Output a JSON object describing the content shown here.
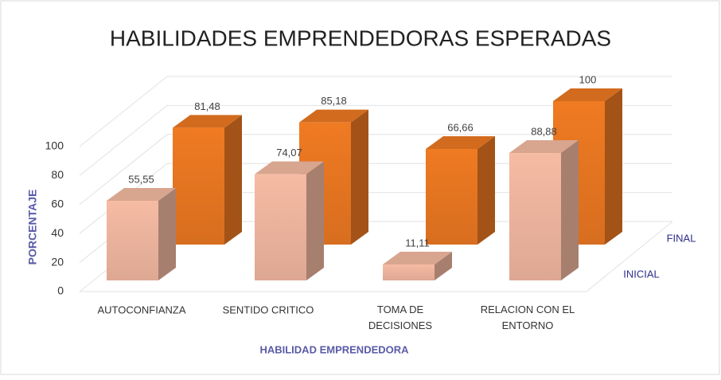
{
  "chart_data": {
    "type": "bar3d",
    "title": "HABILIDADES EMPRENDEDORAS ESPERADAS",
    "x_label": "HABILIDAD EMPRENDEDORA",
    "y_label": "PORCENTAJE",
    "categories": [
      "AUTOCONFIANZA",
      "SENTIDO CRITICO",
      "TOMA DE DECISIONES",
      "RELACION CON EL ENTORNO"
    ],
    "series": [
      {
        "name": "INICIAL",
        "color": "#f6bba3",
        "values": [
          55.55,
          74.07,
          11.11,
          88.88
        ],
        "value_labels": [
          "55,55",
          "74,07",
          "11,11",
          "88,88"
        ]
      },
      {
        "name": "FINAL",
        "color": "#ef7a22",
        "values": [
          81.48,
          85.18,
          66.66,
          100
        ],
        "value_labels": [
          "81,48",
          "85,18",
          "66,66",
          "100"
        ]
      }
    ],
    "ylim": [
      0,
      100
    ],
    "yticks": [
      0,
      20,
      40,
      60,
      80,
      100
    ],
    "grid": true
  }
}
